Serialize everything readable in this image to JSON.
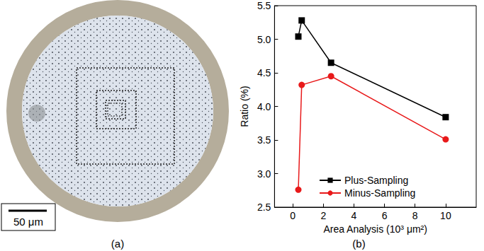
{
  "figure": {
    "a": {
      "label": "(a)",
      "scale_bar": "50 μm"
    },
    "b": {
      "label": "(b)"
    }
  },
  "chart_data": {
    "type": "line",
    "x_label": "Area Analysis (10³ μm²)",
    "y_label": "Ratio (%)",
    "x": [
      0.36,
      0.58,
      2.5,
      10
    ],
    "series": [
      {
        "name": "Plus-Sampling",
        "color": "#000000",
        "marker": "square",
        "values": [
          5.04,
          5.28,
          4.65,
          3.84
        ]
      },
      {
        "name": "Minus-Sampling",
        "color": "#e8191a",
        "marker": "circle",
        "values": [
          2.76,
          4.32,
          4.45,
          3.51
        ]
      }
    ],
    "xlim": [
      -1.2,
      12
    ],
    "xticks": [
      0,
      2,
      4,
      6,
      8,
      10
    ],
    "ylim": [
      2.5,
      5.5
    ],
    "yticks": [
      {
        "value": 2.5,
        "label": "2.5"
      },
      {
        "value": 3,
        "label": "3.0"
      },
      {
        "value": 3.5,
        "label": "3.5"
      },
      {
        "value": 4,
        "label": "4.0"
      },
      {
        "value": 4.5,
        "label": "4.5"
      },
      {
        "value": 5,
        "label": "5.0"
      },
      {
        "value": 5.5,
        "label": "5.5"
      }
    ],
    "grid": false,
    "legend": "lower center"
  }
}
